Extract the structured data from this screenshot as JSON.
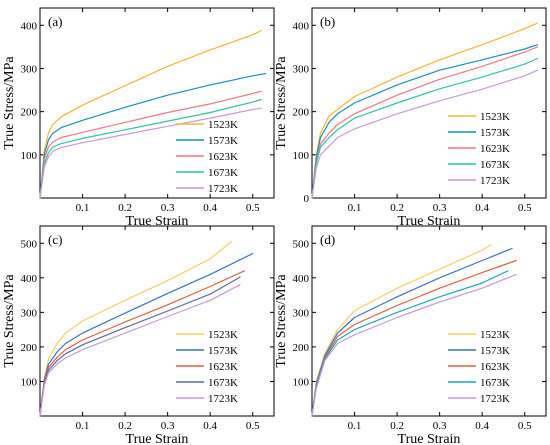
{
  "figure": {
    "panels": [
      "a",
      "b",
      "c",
      "d"
    ]
  },
  "chart_data": [
    {
      "panel": "(a)",
      "type": "line",
      "xlabel": "True Strain",
      "ylabel": "True Stress/MPa",
      "xlim": [
        0,
        0.55
      ],
      "ylim": [
        0,
        440
      ],
      "xticks": [
        0.1,
        0.2,
        0.3,
        0.4,
        0.5
      ],
      "yticks": [
        100,
        200,
        300,
        400
      ],
      "legend_position": "bottom-right",
      "series": [
        {
          "name": "1523K",
          "color": "#f5b630",
          "points": [
            [
              0,
              0
            ],
            [
              0.01,
              110
            ],
            [
              0.02,
              150
            ],
            [
              0.03,
              170
            ],
            [
              0.05,
              188
            ],
            [
              0.1,
              215
            ],
            [
              0.2,
              260
            ],
            [
              0.3,
              305
            ],
            [
              0.4,
              343
            ],
            [
              0.5,
              378
            ],
            [
              0.52,
              388
            ]
          ]
        },
        {
          "name": "1573K",
          "color": "#1a8fb8",
          "points": [
            [
              0,
              0
            ],
            [
              0.01,
              100
            ],
            [
              0.02,
              135
            ],
            [
              0.03,
              150
            ],
            [
              0.05,
              163
            ],
            [
              0.1,
              180
            ],
            [
              0.2,
              210
            ],
            [
              0.3,
              238
            ],
            [
              0.4,
              262
            ],
            [
              0.5,
              283
            ],
            [
              0.53,
              288
            ]
          ]
        },
        {
          "name": "1623K",
          "color": "#f07882",
          "points": [
            [
              0,
              0
            ],
            [
              0.01,
              90
            ],
            [
              0.02,
              118
            ],
            [
              0.03,
              130
            ],
            [
              0.05,
              140
            ],
            [
              0.1,
              152
            ],
            [
              0.2,
              175
            ],
            [
              0.3,
              198
            ],
            [
              0.4,
              218
            ],
            [
              0.5,
              242
            ],
            [
              0.52,
              247
            ]
          ]
        },
        {
          "name": "1673K",
          "color": "#2cc3a4",
          "points": [
            [
              0,
              0
            ],
            [
              0.01,
              80
            ],
            [
              0.02,
              105
            ],
            [
              0.03,
              118
            ],
            [
              0.05,
              126
            ],
            [
              0.1,
              138
            ],
            [
              0.2,
              158
            ],
            [
              0.3,
              178
            ],
            [
              0.4,
              198
            ],
            [
              0.5,
              222
            ],
            [
              0.52,
              228
            ]
          ]
        },
        {
          "name": "1723K",
          "color": "#c79ad8",
          "points": [
            [
              0,
              0
            ],
            [
              0.01,
              72
            ],
            [
              0.02,
              96
            ],
            [
              0.03,
              108
            ],
            [
              0.05,
              117
            ],
            [
              0.1,
              128
            ],
            [
              0.2,
              147
            ],
            [
              0.3,
              166
            ],
            [
              0.4,
              185
            ],
            [
              0.5,
              205
            ],
            [
              0.52,
              208
            ]
          ]
        }
      ]
    },
    {
      "panel": "(b)",
      "type": "line",
      "xlabel": "True Strain",
      "ylabel": "True Stress/MPa",
      "xlim": [
        0,
        0.55
      ],
      "ylim": [
        0,
        440
      ],
      "xticks": [
        0.1,
        0.2,
        0.3,
        0.4,
        0.5
      ],
      "yticks": [
        0,
        100,
        200,
        300,
        400
      ],
      "legend_position": "bottom-right",
      "series": [
        {
          "name": "1523K",
          "color": "#f5b630",
          "points": [
            [
              0,
              0
            ],
            [
              0.01,
              100
            ],
            [
              0.02,
              150
            ],
            [
              0.04,
              190
            ],
            [
              0.06,
              205
            ],
            [
              0.1,
              235
            ],
            [
              0.2,
              280
            ],
            [
              0.3,
              320
            ],
            [
              0.4,
              355
            ],
            [
              0.5,
              392
            ],
            [
              0.53,
              405
            ]
          ]
        },
        {
          "name": "1573K",
          "color": "#1a8fb8",
          "points": [
            [
              0,
              0
            ],
            [
              0.01,
              95
            ],
            [
              0.02,
              140
            ],
            [
              0.04,
              175
            ],
            [
              0.06,
              195
            ],
            [
              0.1,
              220
            ],
            [
              0.2,
              262
            ],
            [
              0.3,
              296
            ],
            [
              0.4,
              320
            ],
            [
              0.5,
              345
            ],
            [
              0.53,
              355
            ]
          ]
        },
        {
          "name": "1623K",
          "color": "#f07882",
          "points": [
            [
              0,
              0
            ],
            [
              0.01,
              85
            ],
            [
              0.02,
              125
            ],
            [
              0.04,
              150
            ],
            [
              0.06,
              170
            ],
            [
              0.1,
              195
            ],
            [
              0.2,
              238
            ],
            [
              0.3,
              275
            ],
            [
              0.4,
              305
            ],
            [
              0.5,
              338
            ],
            [
              0.53,
              350
            ]
          ]
        },
        {
          "name": "1673K",
          "color": "#2cc3a4",
          "points": [
            [
              0,
              0
            ],
            [
              0.01,
              80
            ],
            [
              0.02,
              118
            ],
            [
              0.04,
              140
            ],
            [
              0.06,
              158
            ],
            [
              0.1,
              185
            ],
            [
              0.2,
              220
            ],
            [
              0.3,
              253
            ],
            [
              0.4,
              280
            ],
            [
              0.5,
              310
            ],
            [
              0.53,
              323
            ]
          ]
        },
        {
          "name": "1723K",
          "color": "#c79ad8",
          "points": [
            [
              0,
              0
            ],
            [
              0.01,
              70
            ],
            [
              0.02,
              100
            ],
            [
              0.04,
              120
            ],
            [
              0.06,
              140
            ],
            [
              0.1,
              160
            ],
            [
              0.2,
              195
            ],
            [
              0.3,
              225
            ],
            [
              0.4,
              252
            ],
            [
              0.5,
              283
            ],
            [
              0.53,
              296
            ]
          ]
        }
      ]
    },
    {
      "panel": "(c)",
      "type": "line",
      "xlabel": "True Strain",
      "ylabel": "True Stress/MPa",
      "xlim": [
        0,
        0.55
      ],
      "ylim": [
        0,
        550
      ],
      "xticks": [
        0.1,
        0.2,
        0.3,
        0.4,
        0.5
      ],
      "yticks": [
        100,
        200,
        300,
        400,
        500
      ],
      "legend_position": "bottom-right",
      "series": [
        {
          "name": "1523K",
          "color": "#f5d060",
          "points": [
            [
              0,
              0
            ],
            [
              0.01,
              110
            ],
            [
              0.02,
              165
            ],
            [
              0.04,
              210
            ],
            [
              0.06,
              240
            ],
            [
              0.1,
              275
            ],
            [
              0.2,
              335
            ],
            [
              0.3,
              392
            ],
            [
              0.4,
              455
            ],
            [
              0.45,
              505
            ]
          ]
        },
        {
          "name": "1573K",
          "color": "#3a70c8",
          "points": [
            [
              0,
              0
            ],
            [
              0.01,
              105
            ],
            [
              0.02,
              150
            ],
            [
              0.04,
              185
            ],
            [
              0.06,
              210
            ],
            [
              0.1,
              240
            ],
            [
              0.2,
              298
            ],
            [
              0.3,
              355
            ],
            [
              0.4,
              410
            ],
            [
              0.5,
              470
            ]
          ]
        },
        {
          "name": "1623K",
          "color": "#e06040",
          "points": [
            [
              0,
              0
            ],
            [
              0.01,
              100
            ],
            [
              0.02,
              140
            ],
            [
              0.04,
              170
            ],
            [
              0.06,
              192
            ],
            [
              0.1,
              220
            ],
            [
              0.2,
              272
            ],
            [
              0.3,
              322
            ],
            [
              0.4,
              375
            ],
            [
              0.48,
              420
            ]
          ]
        },
        {
          "name": "1673K",
          "color": "#5a6a9a",
          "points": [
            [
              0,
              0
            ],
            [
              0.01,
              95
            ],
            [
              0.02,
              132
            ],
            [
              0.04,
              160
            ],
            [
              0.06,
              180
            ],
            [
              0.1,
              206
            ],
            [
              0.2,
              256
            ],
            [
              0.3,
              304
            ],
            [
              0.4,
              353
            ],
            [
              0.47,
              402
            ]
          ]
        },
        {
          "name": "1723K",
          "color": "#c79ad8",
          "points": [
            [
              0,
              0
            ],
            [
              0.01,
              90
            ],
            [
              0.02,
              125
            ],
            [
              0.04,
              150
            ],
            [
              0.06,
              168
            ],
            [
              0.1,
              192
            ],
            [
              0.2,
              240
            ],
            [
              0.3,
              288
            ],
            [
              0.4,
              335
            ],
            [
              0.47,
              380
            ]
          ]
        }
      ]
    },
    {
      "panel": "(d)",
      "type": "line",
      "xlabel": "True Strain",
      "ylabel": "True Stress/MPa",
      "xlim": [
        0,
        0.55
      ],
      "ylim": [
        0,
        550
      ],
      "xticks": [
        0.1,
        0.2,
        0.3,
        0.4,
        0.5
      ],
      "yticks": [
        100,
        200,
        300,
        400,
        500
      ],
      "legend_position": "bottom-right",
      "series": [
        {
          "name": "1523K",
          "color": "#f5d060",
          "points": [
            [
              0,
              0
            ],
            [
              0.01,
              100
            ],
            [
              0.03,
              180
            ],
            [
              0.06,
              250
            ],
            [
              0.1,
              305
            ],
            [
              0.2,
              370
            ],
            [
              0.3,
              425
            ],
            [
              0.4,
              480
            ],
            [
              0.42,
              495
            ]
          ]
        },
        {
          "name": "1573K",
          "color": "#3a70c8",
          "points": [
            [
              0,
              0
            ],
            [
              0.01,
              95
            ],
            [
              0.03,
              175
            ],
            [
              0.06,
              240
            ],
            [
              0.1,
              285
            ],
            [
              0.2,
              345
            ],
            [
              0.3,
              400
            ],
            [
              0.4,
              450
            ],
            [
              0.47,
              485
            ]
          ]
        },
        {
          "name": "1623K",
          "color": "#e06040",
          "points": [
            [
              0,
              0
            ],
            [
              0.01,
              90
            ],
            [
              0.03,
              170
            ],
            [
              0.06,
              230
            ],
            [
              0.1,
              265
            ],
            [
              0.2,
              320
            ],
            [
              0.3,
              370
            ],
            [
              0.4,
              415
            ],
            [
              0.48,
              450
            ]
          ]
        },
        {
          "name": "1673K",
          "color": "#1aa8b8",
          "points": [
            [
              0,
              0
            ],
            [
              0.01,
              85
            ],
            [
              0.03,
              165
            ],
            [
              0.06,
              220
            ],
            [
              0.1,
              250
            ],
            [
              0.2,
              300
            ],
            [
              0.3,
              345
            ],
            [
              0.4,
              385
            ],
            [
              0.46,
              420
            ]
          ]
        },
        {
          "name": "1723K",
          "color": "#c79ad8",
          "points": [
            [
              0,
              0
            ],
            [
              0.01,
              80
            ],
            [
              0.03,
              160
            ],
            [
              0.06,
              210
            ],
            [
              0.1,
              235
            ],
            [
              0.2,
              285
            ],
            [
              0.3,
              330
            ],
            [
              0.4,
              370
            ],
            [
              0.48,
              410
            ]
          ]
        }
      ]
    }
  ]
}
